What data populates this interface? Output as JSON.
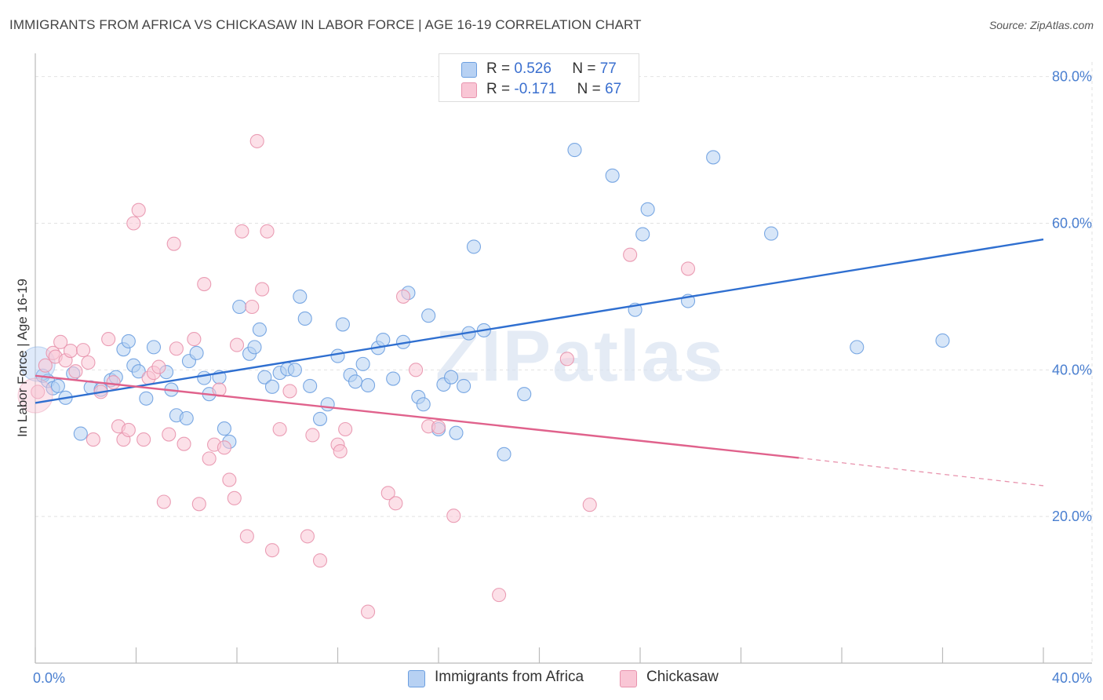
{
  "header": {
    "title": "IMMIGRANTS FROM AFRICA VS CHICKASAW IN LABOR FORCE | AGE 16-19 CORRELATION CHART",
    "source": "Source: ZipAtlas.com"
  },
  "watermark": "ZIPatlas",
  "legend": {
    "rows": [
      {
        "r_label": "R =",
        "r_value": "0.526",
        "n_label": "N =",
        "n_value": "77",
        "color": "#a9c8f0"
      },
      {
        "r_label": "R =",
        "r_value": "-0.171",
        "n_label": "N =",
        "n_value": "67",
        "color": "#f7b8cc"
      }
    ]
  },
  "chart_data": {
    "type": "scatter",
    "ylabel": "In Labor Force | Age 16-19",
    "x_ticks": [
      "0.0%",
      "40.0%"
    ],
    "y_ticks": [
      "20.0%",
      "40.0%",
      "60.0%",
      "80.0%"
    ],
    "xlim": [
      0,
      40
    ],
    "ylim": [
      0,
      82
    ],
    "grid": true,
    "legend_position": "bottom",
    "series": [
      {
        "name": "Immigrants from Africa",
        "color": "#6c9fe0",
        "fill": "#b7d1f3",
        "trend": {
          "x": [
            0,
            40
          ],
          "y": [
            35.5,
            57.8
          ]
        },
        "points": [
          [
            0.3,
            39.2
          ],
          [
            0.5,
            38.5
          ],
          [
            0.7,
            37.5
          ],
          [
            0.9,
            37.8
          ],
          [
            1.2,
            36.2
          ],
          [
            1.5,
            39.5
          ],
          [
            1.8,
            31.3
          ],
          [
            2.2,
            37.6
          ],
          [
            2.6,
            37.3
          ],
          [
            3.0,
            38.6
          ],
          [
            3.2,
            39.0
          ],
          [
            3.5,
            42.8
          ],
          [
            3.7,
            43.9
          ],
          [
            3.9,
            40.6
          ],
          [
            4.1,
            39.8
          ],
          [
            4.4,
            36.1
          ],
          [
            4.7,
            43.1
          ],
          [
            5.2,
            39.7
          ],
          [
            5.4,
            37.3
          ],
          [
            5.6,
            33.8
          ],
          [
            6.0,
            33.4
          ],
          [
            6.1,
            41.2
          ],
          [
            6.4,
            42.3
          ],
          [
            6.7,
            38.9
          ],
          [
            6.9,
            36.7
          ],
          [
            7.3,
            39.0
          ],
          [
            7.5,
            32.0
          ],
          [
            7.7,
            30.2
          ],
          [
            8.1,
            48.6
          ],
          [
            8.5,
            42.2
          ],
          [
            8.7,
            43.1
          ],
          [
            8.9,
            45.5
          ],
          [
            9.1,
            39.0
          ],
          [
            9.4,
            37.7
          ],
          [
            9.7,
            39.6
          ],
          [
            10.0,
            40.1
          ],
          [
            10.3,
            40.0
          ],
          [
            10.5,
            50.0
          ],
          [
            10.7,
            47.0
          ],
          [
            10.9,
            37.8
          ],
          [
            11.3,
            33.3
          ],
          [
            11.6,
            35.3
          ],
          [
            12.0,
            41.9
          ],
          [
            12.2,
            46.2
          ],
          [
            12.5,
            39.3
          ],
          [
            12.7,
            38.4
          ],
          [
            13.0,
            40.8
          ],
          [
            13.2,
            37.9
          ],
          [
            13.6,
            43.0
          ],
          [
            13.8,
            44.1
          ],
          [
            14.2,
            38.8
          ],
          [
            14.6,
            43.8
          ],
          [
            14.8,
            50.5
          ],
          [
            15.2,
            36.3
          ],
          [
            15.4,
            35.3
          ],
          [
            15.6,
            47.4
          ],
          [
            16.0,
            31.9
          ],
          [
            16.2,
            38.0
          ],
          [
            16.5,
            39.0
          ],
          [
            16.7,
            31.4
          ],
          [
            17.0,
            37.8
          ],
          [
            17.2,
            45.0
          ],
          [
            17.4,
            56.8
          ],
          [
            17.8,
            45.4
          ],
          [
            18.6,
            28.5
          ],
          [
            19.4,
            36.7
          ],
          [
            21.4,
            70.0
          ],
          [
            22.9,
            66.5
          ],
          [
            23.8,
            48.2
          ],
          [
            24.1,
            58.5
          ],
          [
            24.3,
            61.9
          ],
          [
            25.9,
            49.4
          ],
          [
            26.9,
            69.0
          ],
          [
            29.2,
            58.6
          ],
          [
            32.6,
            43.1
          ],
          [
            36.0,
            44.0
          ],
          [
            0.1,
            40.8
          ]
        ]
      },
      {
        "name": "Chickasaw",
        "color": "#e893ad",
        "fill": "#f9c6d5",
        "trend": {
          "x": [
            0,
            30.3
          ],
          "y": [
            39.2,
            28.0
          ]
        },
        "trend_dashed": {
          "x": [
            30.3,
            40
          ],
          "y": [
            28.0,
            24.2
          ]
        },
        "points": [
          [
            0.1,
            37.0
          ],
          [
            0.4,
            40.6
          ],
          [
            0.7,
            42.3
          ],
          [
            0.8,
            41.8
          ],
          [
            1.0,
            43.8
          ],
          [
            1.2,
            41.3
          ],
          [
            1.4,
            42.6
          ],
          [
            1.6,
            39.8
          ],
          [
            1.9,
            42.7
          ],
          [
            2.1,
            41.0
          ],
          [
            2.3,
            30.5
          ],
          [
            2.6,
            37.0
          ],
          [
            2.9,
            44.2
          ],
          [
            3.1,
            38.3
          ],
          [
            3.3,
            32.3
          ],
          [
            3.5,
            30.5
          ],
          [
            3.7,
            31.8
          ],
          [
            3.9,
            60.0
          ],
          [
            4.1,
            61.8
          ],
          [
            4.3,
            30.5
          ],
          [
            4.5,
            38.9
          ],
          [
            4.7,
            39.6
          ],
          [
            4.9,
            40.4
          ],
          [
            5.1,
            22.0
          ],
          [
            5.3,
            31.2
          ],
          [
            5.5,
            57.2
          ],
          [
            5.6,
            42.9
          ],
          [
            5.9,
            29.9
          ],
          [
            6.3,
            44.2
          ],
          [
            6.5,
            21.7
          ],
          [
            6.7,
            51.7
          ],
          [
            6.9,
            27.9
          ],
          [
            7.1,
            29.8
          ],
          [
            7.3,
            37.3
          ],
          [
            7.5,
            29.4
          ],
          [
            7.7,
            25.0
          ],
          [
            7.9,
            22.5
          ],
          [
            8.0,
            43.4
          ],
          [
            8.2,
            58.9
          ],
          [
            8.4,
            17.3
          ],
          [
            8.6,
            48.6
          ],
          [
            8.8,
            71.2
          ],
          [
            9.0,
            51.0
          ],
          [
            9.2,
            58.9
          ],
          [
            9.4,
            15.4
          ],
          [
            9.7,
            31.9
          ],
          [
            10.1,
            37.1
          ],
          [
            10.8,
            17.3
          ],
          [
            11.0,
            31.1
          ],
          [
            11.3,
            14.0
          ],
          [
            12.0,
            29.8
          ],
          [
            12.1,
            28.9
          ],
          [
            12.3,
            31.9
          ],
          [
            13.2,
            7.0
          ],
          [
            14.0,
            23.2
          ],
          [
            14.3,
            21.8
          ],
          [
            14.6,
            50.0
          ],
          [
            15.1,
            40.0
          ],
          [
            15.6,
            32.3
          ],
          [
            16.0,
            32.2
          ],
          [
            16.6,
            20.1
          ],
          [
            18.4,
            9.3
          ],
          [
            21.1,
            41.5
          ],
          [
            22.0,
            21.6
          ],
          [
            23.6,
            55.7
          ],
          [
            25.9,
            53.8
          ],
          [
            0.0,
            36.5
          ]
        ]
      }
    ]
  }
}
